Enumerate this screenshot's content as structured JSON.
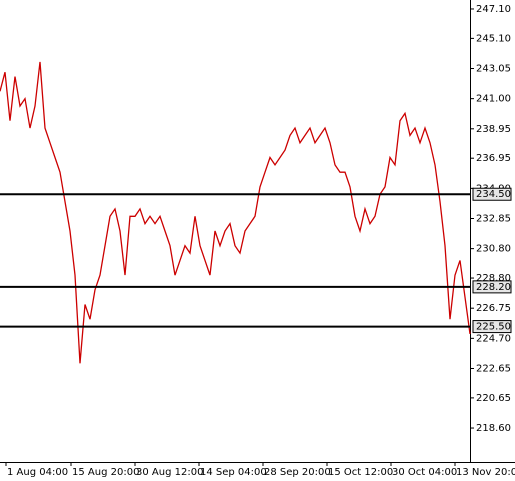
{
  "chart_data": {
    "type": "line",
    "x": [
      0,
      5,
      10,
      15,
      20,
      25,
      30,
      35,
      40,
      45,
      50,
      55,
      60,
      65,
      70,
      75,
      80,
      85,
      90,
      95,
      100,
      105,
      110,
      115,
      120,
      125,
      130,
      135,
      140,
      145,
      150,
      155,
      160,
      165,
      170,
      175,
      180,
      185,
      190,
      195,
      200,
      205,
      210,
      215,
      220,
      225,
      230,
      235,
      240,
      245,
      250,
      255,
      260,
      265,
      270,
      275,
      280,
      285,
      290,
      295,
      300,
      305,
      310,
      315,
      320,
      325,
      330,
      335,
      340,
      345,
      350,
      355,
      360,
      365,
      370,
      375,
      380,
      385,
      390,
      395,
      400,
      405,
      410,
      415,
      420,
      425,
      430,
      435,
      440,
      445,
      450,
      455,
      460,
      465,
      470
    ],
    "series": [
      {
        "color": "#cc0000",
        "values": [
          241.5,
          242.8,
          239.5,
          242.5,
          240.5,
          241,
          239,
          240.5,
          243.5,
          239,
          238,
          237,
          236,
          234,
          232,
          229,
          223,
          227,
          226,
          228,
          229,
          231,
          233,
          233.5,
          232,
          229,
          233,
          233,
          233.5,
          232.5,
          233,
          232.5,
          233,
          232,
          231,
          229,
          230,
          231,
          230.5,
          233,
          231,
          230,
          229,
          232,
          231,
          232,
          232.5,
          231,
          230.5,
          232,
          232.5,
          233,
          235,
          236,
          237,
          236.5,
          237,
          237.5,
          238.5,
          239,
          238,
          238.5,
          239,
          238,
          238.5,
          239,
          238,
          236.5,
          236,
          236,
          235,
          233,
          232,
          233.5,
          232.5,
          233,
          234.5,
          235,
          237,
          236.5,
          239.5,
          240,
          238.5,
          239,
          238,
          239,
          238,
          236.5,
          234,
          231,
          226,
          229,
          230,
          227.5,
          225
        ]
      }
    ],
    "xlim": [
      0,
      470
    ],
    "xticks": [
      {
        "value": 6,
        "label": "1 Aug 04:00"
      },
      {
        "value": 71,
        "label": "15 Aug 20:00"
      },
      {
        "value": 135,
        "label": "30 Aug 12:00"
      },
      {
        "value": 199,
        "label": "14 Sep 04:00"
      },
      {
        "value": 263,
        "label": "28 Sep 20:00"
      },
      {
        "value": 327,
        "label": "15 Oct 12:00"
      },
      {
        "value": 391,
        "label": "30 Oct 04:00"
      },
      {
        "value": 455,
        "label": "13 Nov 20:00"
      }
    ],
    "ylim": [
      216.29,
      247.71
    ],
    "yticks": [
      {
        "value": 218.6,
        "label": "218.60"
      },
      {
        "value": 220.65,
        "label": "220.65"
      },
      {
        "value": 222.65,
        "label": "222.65"
      },
      {
        "value": 224.7,
        "label": "224.70"
      },
      {
        "value": 226.75,
        "label": "226.75"
      },
      {
        "value": 228.8,
        "label": "228.80"
      },
      {
        "value": 230.8,
        "label": "230.80"
      },
      {
        "value": 232.85,
        "label": "232.85"
      },
      {
        "value": 234.9,
        "label": "234.90"
      },
      {
        "value": 236.95,
        "label": "236.95"
      },
      {
        "value": 238.95,
        "label": "238.95"
      },
      {
        "value": 241,
        "label": "241.00"
      },
      {
        "value": 243.05,
        "label": "243.05"
      },
      {
        "value": 245.1,
        "label": "245.10"
      },
      {
        "value": 247.1,
        "label": "247.10"
      }
    ],
    "levels": [
      {
        "value": 234.5,
        "label": "234.50"
      },
      {
        "value": 228.2,
        "label": "228.20"
      },
      {
        "value": 225.5,
        "label": "225.50"
      }
    ],
    "level_color": "#000000"
  }
}
